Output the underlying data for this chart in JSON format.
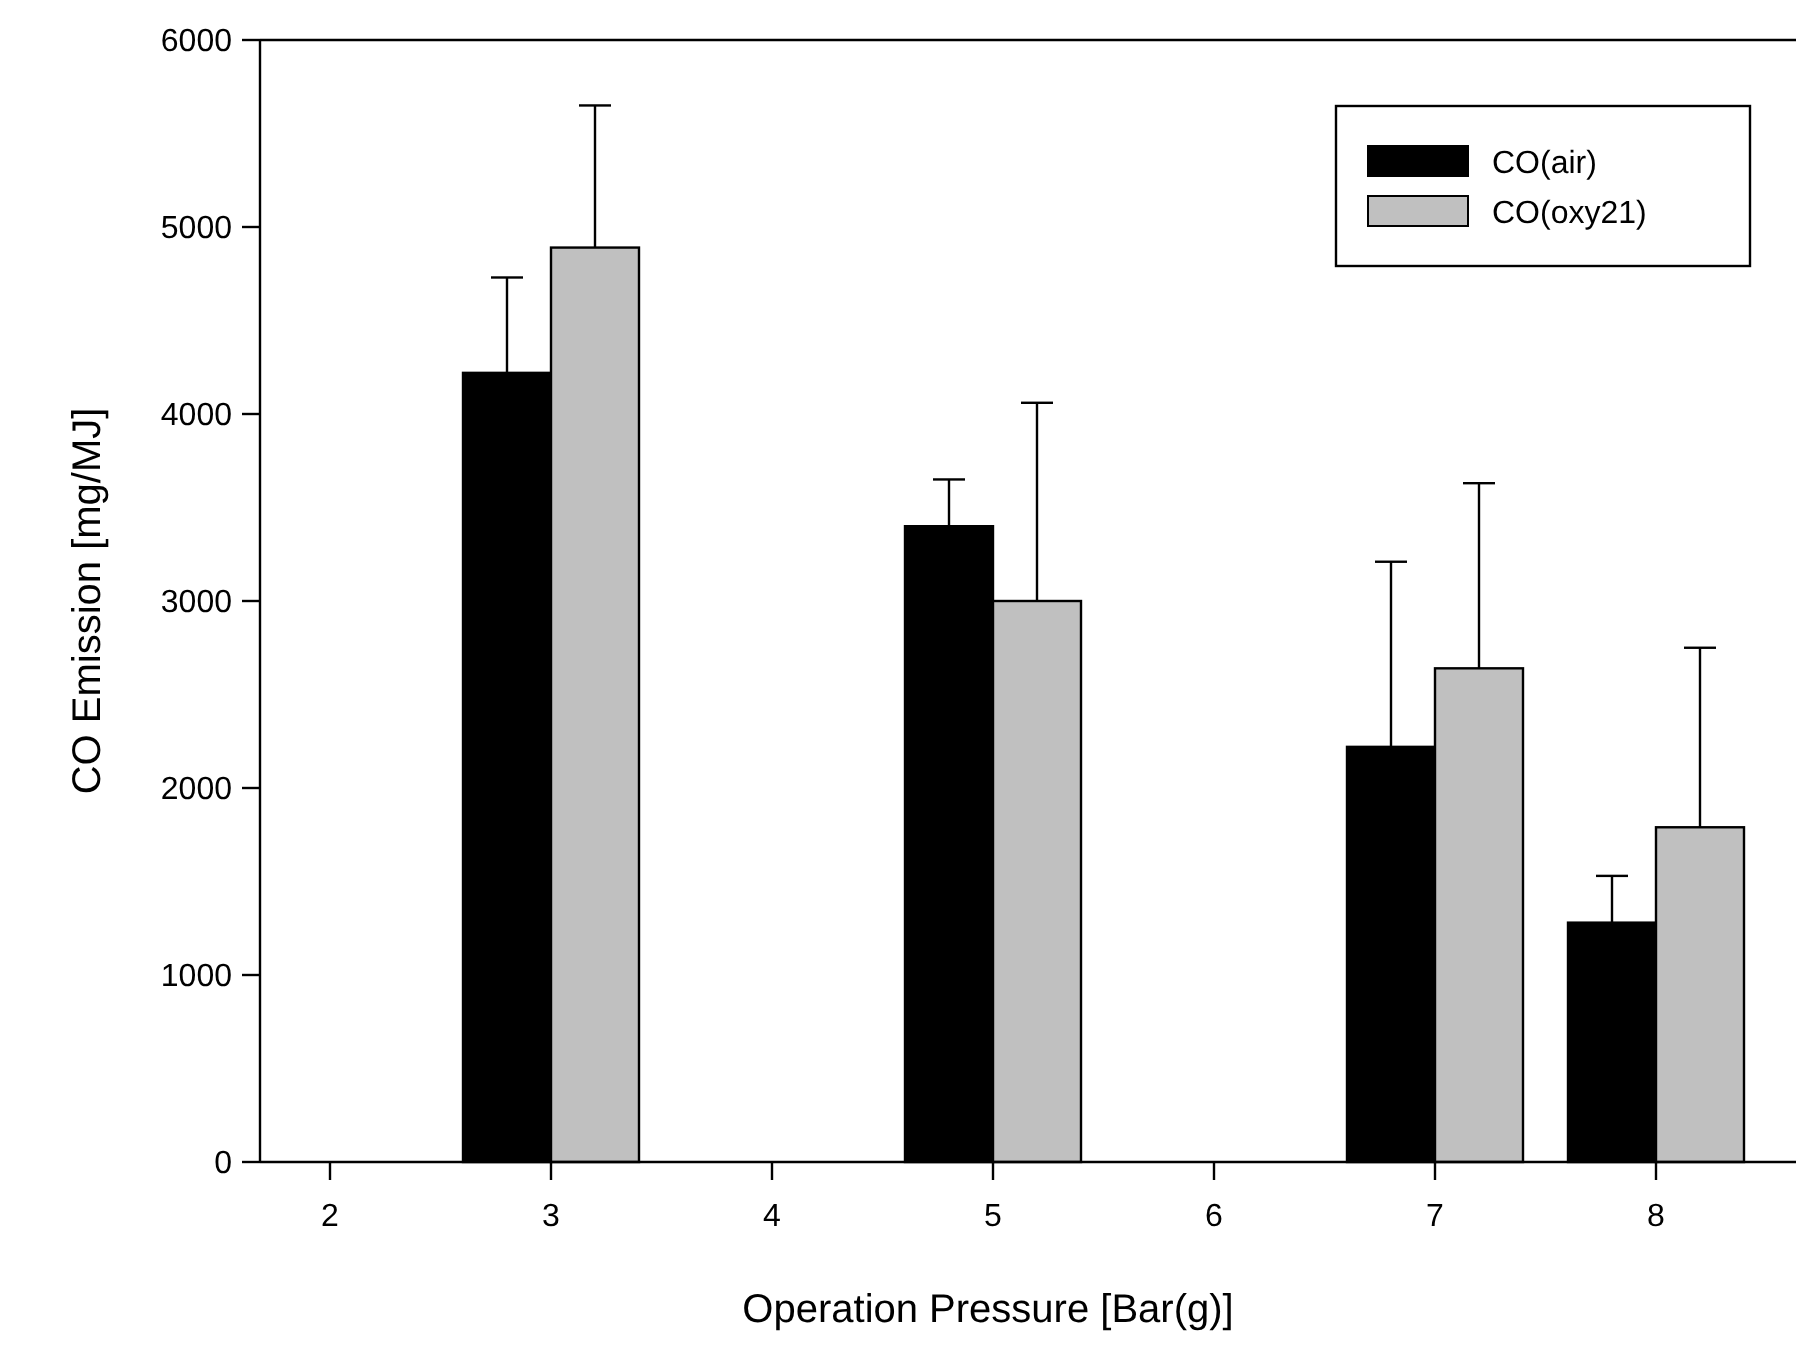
{
  "chart_data": {
    "type": "bar",
    "xlabel": "Operation Pressure [Bar(g)]",
    "ylabel": "CO Emission [mg/MJ]",
    "categories": [
      "2",
      "3",
      "4",
      "5",
      "6",
      "7",
      "8"
    ],
    "series": [
      {
        "name": "CO(air)",
        "color": "#000000",
        "values": [
          null,
          4220,
          null,
          3400,
          null,
          2220,
          1280
        ],
        "errors": [
          null,
          [
            4220,
            4730
          ],
          null,
          [
            3400,
            3650
          ],
          null,
          [
            2220,
            3210
          ],
          [
            1280,
            1530
          ]
        ]
      },
      {
        "name": "CO(oxy21)",
        "color": "#c0c0c0",
        "values": [
          null,
          4890,
          null,
          3000,
          null,
          2640,
          1790
        ],
        "errors": [
          null,
          [
            4890,
            5650
          ],
          null,
          [
            3000,
            4060
          ],
          null,
          [
            2640,
            3630
          ],
          [
            1790,
            2750
          ]
        ]
      }
    ],
    "ylim": [
      0,
      6000
    ],
    "yticks": [
      0,
      1000,
      2000,
      3000,
      4000,
      5000,
      6000
    ],
    "grid": false,
    "legend": "top right"
  }
}
